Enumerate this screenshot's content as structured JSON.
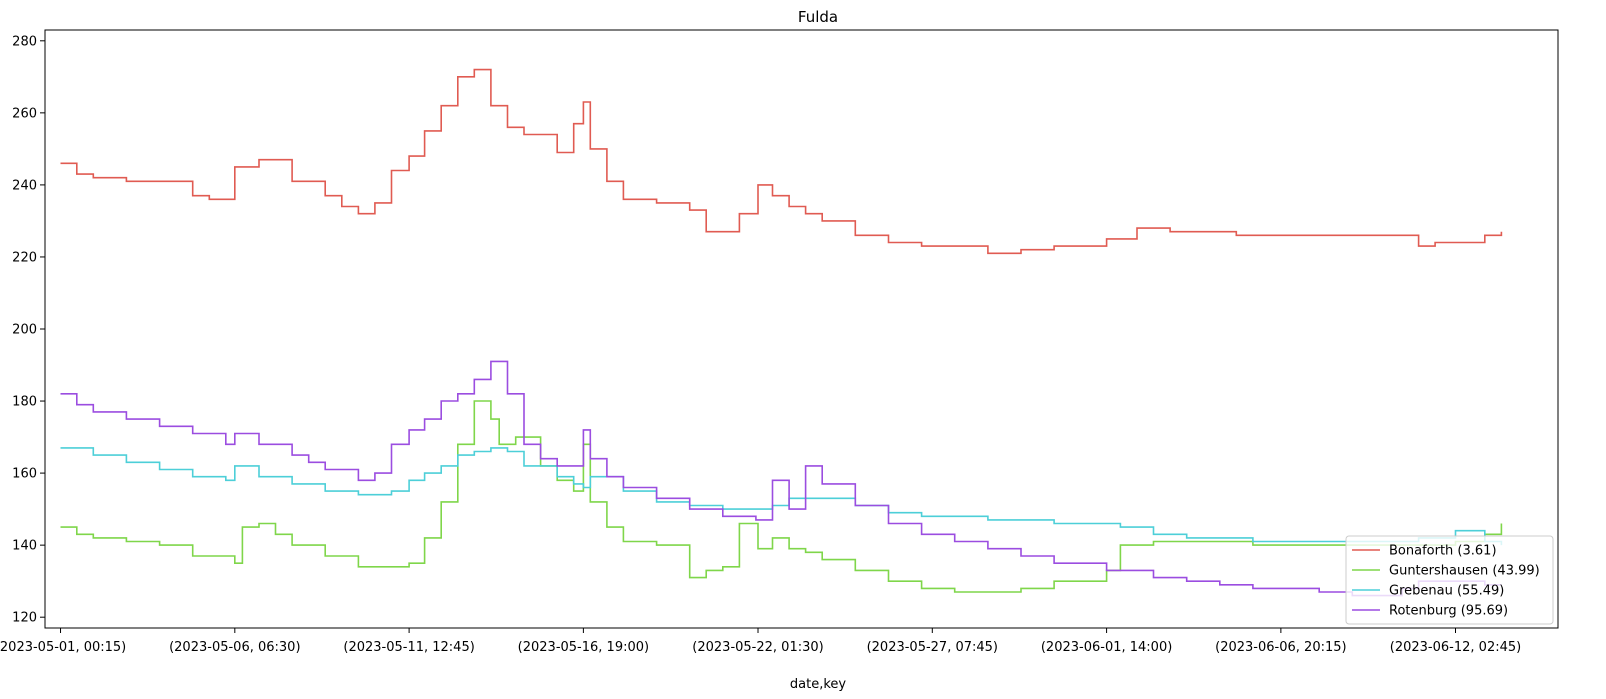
{
  "chart_data": {
    "type": "line",
    "title": "Fulda",
    "xlabel": "date,key",
    "ylabel": "",
    "x_tick_labels": [
      "(2023-05-01, 00:15)",
      "(2023-05-06, 06:30)",
      "(2023-05-11, 12:45)",
      "(2023-05-16, 19:00)",
      "(2023-05-22, 01:30)",
      "(2023-05-27, 07:45)",
      "(2023-06-01, 14:00)",
      "(2023-06-06, 20:15)",
      "(2023-06-12, 02:45)"
    ],
    "x_tick_dates": [
      "2023-05-01 00:15",
      "2023-05-06 06:30",
      "2023-05-11 12:45",
      "2023-05-16 19:00",
      "2023-05-22 01:30",
      "2023-05-27 07:45",
      "2023-06-01 14:00",
      "2023-06-06 20:15",
      "2023-06-12 02:45"
    ],
    "y_ticks": [
      120,
      140,
      160,
      180,
      200,
      220,
      240,
      260,
      280
    ],
    "ylim": [
      117,
      283
    ],
    "xlim": [
      "2023-04-30 13:00",
      "2023-06-15 05:00"
    ],
    "grid": false,
    "legend_position": "lower-right",
    "series": [
      {
        "name": "Bonaforth (3.61)",
        "color": "#e05b52",
        "x": [
          "2023-05-01 00:15",
          "2023-05-01 12:00",
          "2023-05-02 00:00",
          "2023-05-03 00:00",
          "2023-05-04 00:00",
          "2023-05-05 00:00",
          "2023-05-05 12:00",
          "2023-05-06 00:00",
          "2023-05-06 06:30",
          "2023-05-07 00:00",
          "2023-05-08 00:00",
          "2023-05-09 00:00",
          "2023-05-09 12:00",
          "2023-05-10 00:00",
          "2023-05-10 12:00",
          "2023-05-11 00:00",
          "2023-05-11 12:45",
          "2023-05-12 00:00",
          "2023-05-12 12:00",
          "2023-05-13 00:00",
          "2023-05-13 12:00",
          "2023-05-14 00:00",
          "2023-05-14 12:00",
          "2023-05-15 00:00",
          "2023-05-15 12:00",
          "2023-05-16 00:00",
          "2023-05-16 12:00",
          "2023-05-16 19:00",
          "2023-05-17 00:00",
          "2023-05-17 12:00",
          "2023-05-18 00:00",
          "2023-05-19 00:00",
          "2023-05-20 00:00",
          "2023-05-20 12:00",
          "2023-05-21 00:00",
          "2023-05-21 12:00",
          "2023-05-22 01:30",
          "2023-05-22 12:00",
          "2023-05-23 00:00",
          "2023-05-23 12:00",
          "2023-05-24 00:00",
          "2023-05-25 00:00",
          "2023-05-26 00:00",
          "2023-05-27 00:00",
          "2023-05-28 00:00",
          "2023-05-29 00:00",
          "2023-05-30 00:00",
          "2023-05-31 00:00",
          "2023-06-01 14:00",
          "2023-06-02 12:00",
          "2023-06-03 12:00",
          "2023-06-04 12:00",
          "2023-06-05 12:00",
          "2023-06-06 20:15",
          "2023-06-08 00:00",
          "2023-06-09 00:00",
          "2023-06-10 00:00",
          "2023-06-11 00:00",
          "2023-06-11 12:00",
          "2023-06-12 02:45",
          "2023-06-13 00:00",
          "2023-06-13 12:00"
        ],
        "y": [
          246,
          243,
          242,
          241,
          241,
          237,
          236,
          236,
          245,
          247,
          241,
          237,
          234,
          232,
          235,
          244,
          248,
          255,
          262,
          270,
          272,
          262,
          256,
          254,
          254,
          249,
          257,
          263,
          250,
          241,
          236,
          235,
          233,
          227,
          227,
          232,
          240,
          237,
          234,
          232,
          230,
          226,
          224,
          223,
          223,
          221,
          222,
          223,
          225,
          228,
          227,
          227,
          226,
          226,
          226,
          226,
          226,
          223,
          224,
          224,
          226,
          227
        ]
      },
      {
        "name": "Guntershausen (43.99)",
        "color": "#7fd64a",
        "x": [
          "2023-05-01 00:15",
          "2023-05-01 12:00",
          "2023-05-02 00:00",
          "2023-05-03 00:00",
          "2023-05-04 00:00",
          "2023-05-05 00:00",
          "2023-05-05 12:00",
          "2023-05-06 00:00",
          "2023-05-06 06:30",
          "2023-05-06 12:00",
          "2023-05-07 00:00",
          "2023-05-07 12:00",
          "2023-05-08 00:00",
          "2023-05-09 00:00",
          "2023-05-10 00:00",
          "2023-05-10 12:00",
          "2023-05-11 00:00",
          "2023-05-11 12:45",
          "2023-05-12 00:00",
          "2023-05-12 12:00",
          "2023-05-13 00:00",
          "2023-05-13 12:00",
          "2023-05-14 00:00",
          "2023-05-14 06:00",
          "2023-05-14 18:00",
          "2023-05-15 12:00",
          "2023-05-16 00:00",
          "2023-05-16 12:00",
          "2023-05-16 19:00",
          "2023-05-17 00:00",
          "2023-05-17 12:00",
          "2023-05-18 00:00",
          "2023-05-19 00:00",
          "2023-05-20 00:00",
          "2023-05-20 12:00",
          "2023-05-21 00:00",
          "2023-05-21 12:00",
          "2023-05-22 01:30",
          "2023-05-22 12:00",
          "2023-05-23 00:00",
          "2023-05-23 12:00",
          "2023-05-24 00:00",
          "2023-05-25 00:00",
          "2023-05-26 00:00",
          "2023-05-27 00:00",
          "2023-05-28 00:00",
          "2023-05-29 00:00",
          "2023-05-30 00:00",
          "2023-05-31 00:00",
          "2023-06-01 14:00",
          "2023-06-02 00:00",
          "2023-06-03 00:00",
          "2023-06-04 00:00",
          "2023-06-05 00:00",
          "2023-06-06 00:00",
          "2023-06-07 00:00",
          "2023-06-08 00:00",
          "2023-06-09 00:00",
          "2023-06-10 00:00",
          "2023-06-11 00:00",
          "2023-06-12 02:45",
          "2023-06-13 00:00",
          "2023-06-13 12:00"
        ],
        "y": [
          145,
          143,
          142,
          141,
          140,
          137,
          137,
          137,
          135,
          145,
          146,
          143,
          140,
          137,
          134,
          134,
          134,
          135,
          142,
          152,
          168,
          180,
          175,
          168,
          170,
          162,
          158,
          155,
          168,
          152,
          145,
          141,
          140,
          131,
          133,
          134,
          146,
          139,
          142,
          139,
          138,
          136,
          133,
          130,
          128,
          127,
          127,
          128,
          130,
          133,
          140,
          141,
          141,
          141,
          140,
          140,
          140,
          140,
          140,
          140,
          141,
          143,
          146
        ]
      },
      {
        "name": "Grebenau (55.49)",
        "color": "#4dcfd8",
        "x": [
          "2023-05-01 00:15",
          "2023-05-02 00:00",
          "2023-05-03 00:00",
          "2023-05-04 00:00",
          "2023-05-05 00:00",
          "2023-05-06 00:00",
          "2023-05-06 06:30",
          "2023-05-07 00:00",
          "2023-05-08 00:00",
          "2023-05-09 00:00",
          "2023-05-10 00:00",
          "2023-05-11 00:00",
          "2023-05-11 12:45",
          "2023-05-12 00:00",
          "2023-05-12 12:00",
          "2023-05-13 00:00",
          "2023-05-13 12:00",
          "2023-05-14 00:00",
          "2023-05-14 12:00",
          "2023-05-15 00:00",
          "2023-05-16 00:00",
          "2023-05-16 12:00",
          "2023-05-16 19:00",
          "2023-05-17 00:00",
          "2023-05-18 00:00",
          "2023-05-19 00:00",
          "2023-05-20 00:00",
          "2023-05-21 00:00",
          "2023-05-22 01:30",
          "2023-05-22 12:00",
          "2023-05-23 00:00",
          "2023-05-24 00:00",
          "2023-05-25 00:00",
          "2023-05-26 00:00",
          "2023-05-27 00:00",
          "2023-05-28 00:00",
          "2023-05-29 00:00",
          "2023-05-30 00:00",
          "2023-05-31 00:00",
          "2023-06-01 00:00",
          "2023-06-01 14:00",
          "2023-06-02 00:00",
          "2023-06-03 00:00",
          "2023-06-04 00:00",
          "2023-06-05 00:00",
          "2023-06-06 00:00",
          "2023-06-07 00:00",
          "2023-06-08 00:00",
          "2023-06-09 00:00",
          "2023-06-10 00:00",
          "2023-06-10 12:00",
          "2023-06-11 00:00",
          "2023-06-12 02:45",
          "2023-06-13 00:00",
          "2023-06-13 12:00"
        ],
        "y": [
          167,
          165,
          163,
          161,
          159,
          158,
          162,
          159,
          157,
          155,
          154,
          155,
          158,
          160,
          162,
          165,
          166,
          167,
          166,
          162,
          159,
          157,
          156,
          159,
          155,
          152,
          151,
          150,
          150,
          151,
          153,
          153,
          151,
          149,
          148,
          148,
          147,
          147,
          146,
          146,
          146,
          145,
          143,
          142,
          142,
          141,
          141,
          141,
          141,
          141,
          141,
          142,
          144,
          141,
          140
        ]
      },
      {
        "name": "Rotenburg (95.69)",
        "color": "#9b4de0",
        "x": [
          "2023-05-01 00:15",
          "2023-05-01 12:00",
          "2023-05-02 00:00",
          "2023-05-03 00:00",
          "2023-05-04 00:00",
          "2023-05-05 00:00",
          "2023-05-06 00:00",
          "2023-05-06 06:30",
          "2023-05-07 00:00",
          "2023-05-08 00:00",
          "2023-05-08 12:00",
          "2023-05-09 00:00",
          "2023-05-10 00:00",
          "2023-05-10 12:00",
          "2023-05-11 00:00",
          "2023-05-11 12:45",
          "2023-05-12 00:00",
          "2023-05-12 12:00",
          "2023-05-13 00:00",
          "2023-05-13 12:00",
          "2023-05-14 00:00",
          "2023-05-14 12:00",
          "2023-05-15 00:00",
          "2023-05-15 12:00",
          "2023-05-16 00:00",
          "2023-05-16 12:00",
          "2023-05-16 19:00",
          "2023-05-17 00:00",
          "2023-05-17 12:00",
          "2023-05-18 00:00",
          "2023-05-19 00:00",
          "2023-05-20 00:00",
          "2023-05-21 00:00",
          "2023-05-22 00:00",
          "2023-05-22 01:30",
          "2023-05-22 12:00",
          "2023-05-23 00:00",
          "2023-05-23 12:00",
          "2023-05-24 00:00",
          "2023-05-25 00:00",
          "2023-05-26 00:00",
          "2023-05-27 00:00",
          "2023-05-28 00:00",
          "2023-05-29 00:00",
          "2023-05-30 00:00",
          "2023-05-31 00:00",
          "2023-06-01 14:00",
          "2023-06-02 00:00",
          "2023-06-03 00:00",
          "2023-06-04 00:00",
          "2023-06-05 00:00",
          "2023-06-06 00:00",
          "2023-06-07 00:00",
          "2023-06-08 00:00",
          "2023-06-09 00:00",
          "2023-06-10 00:00",
          "2023-06-10 12:00",
          "2023-06-11 00:00",
          "2023-06-12 02:45",
          "2023-06-13 00:00",
          "2023-06-13 12:00"
        ],
        "y": [
          182,
          179,
          177,
          175,
          173,
          171,
          168,
          171,
          168,
          165,
          163,
          161,
          158,
          160,
          168,
          172,
          175,
          180,
          182,
          186,
          191,
          182,
          168,
          164,
          162,
          162,
          172,
          164,
          159,
          156,
          153,
          150,
          148,
          147,
          147,
          158,
          150,
          162,
          157,
          151,
          146,
          143,
          141,
          139,
          137,
          135,
          133,
          133,
          131,
          130,
          129,
          128,
          128,
          127,
          126,
          126,
          128,
          130,
          130,
          129,
          129
        ]
      }
    ]
  }
}
